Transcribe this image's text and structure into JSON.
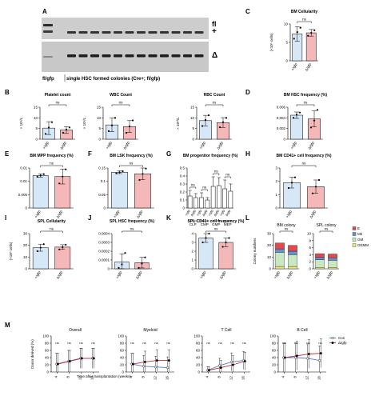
{
  "figure": {
    "gel": {
      "panel_letter": "A",
      "band_label_top": "fl",
      "band_label_plus": "+",
      "band_label_delta": "Δ",
      "lane_label_left": "fl/gfp",
      "lane_label_right": "single HSC formed colonies (Cre+; fl/gfp)"
    },
    "m_x_axis_title": "Time after transplantation (weeks)"
  },
  "chart_data": [
    {
      "id": "C",
      "type": "bar",
      "title": "BM Cellularity",
      "ylabel": "(×10⁶ cells)",
      "categories": [
        "+/gfp",
        "Δ/gfp"
      ],
      "values": [
        7.3,
        7.6
      ],
      "errors": [
        2.0,
        0.9
      ],
      "ylim": [
        0,
        10
      ],
      "yticks": [
        0,
        5,
        10
      ],
      "sig": "ns",
      "points": [
        [
          6.0,
          7.8,
          9.0
        ],
        [
          6.8,
          7.6,
          8.3
        ]
      ]
    },
    {
      "id": "B1",
      "type": "bar",
      "title": "Platelet count",
      "ylabel": "× 10⁹/L",
      "categories": [
        "+/gfp",
        "Δ/gfp"
      ],
      "values": [
        5.2,
        4.3
      ],
      "errors": [
        3.0,
        1.6
      ],
      "ylim": [
        0,
        15
      ],
      "yticks": [
        0,
        5,
        10,
        15
      ],
      "sig": "ns",
      "points": [
        [
          2.5,
          5.5,
          8.0
        ],
        [
          3.0,
          4.5,
          5.5
        ]
      ]
    },
    {
      "id": "B2",
      "type": "bar",
      "title": "WBC Count",
      "ylabel": "× 10⁹/L",
      "categories": [
        "+/gfp",
        "Δ/gfp"
      ],
      "values": [
        6.7,
        5.9
      ],
      "errors": [
        3.2,
        2.8
      ],
      "ylim": [
        0,
        15
      ],
      "yticks": [
        0,
        5,
        10,
        15
      ],
      "sig": "ns",
      "points": [
        [
          3.8,
          6.5,
          10.0
        ],
        [
          3.0,
          6.0,
          8.8
        ]
      ]
    },
    {
      "id": "B3",
      "type": "bar",
      "title": "RBC Count",
      "ylabel": "× 10¹²/L",
      "categories": [
        "+/gfp",
        "Δ/gfp"
      ],
      "values": [
        8.7,
        7.8
      ],
      "errors": [
        2.5,
        2.3
      ],
      "ylim": [
        0,
        15
      ],
      "yticks": [
        0,
        5,
        10,
        15
      ],
      "sig": "ns",
      "points": [
        [
          6.2,
          9.0,
          11.2
        ],
        [
          5.6,
          8.0,
          10.0
        ]
      ]
    },
    {
      "id": "D",
      "type": "bar",
      "title": "BM HSC frequency (%)",
      "categories": [
        "+/gfp",
        "Δ/gfp"
      ],
      "values": [
        0.0045,
        0.0038
      ],
      "errors": [
        0.0006,
        0.0015
      ],
      "ylim": [
        0,
        0.006
      ],
      "yticks": [
        0,
        0.002,
        0.004,
        0.006
      ],
      "sig": "ns",
      "points": [
        [
          0.004,
          0.0046,
          0.005
        ],
        [
          0.0022,
          0.0035,
          0.0055
        ]
      ]
    },
    {
      "id": "E",
      "type": "bar",
      "title": "BM MPP frequency (%)",
      "categories": [
        "+/gfp",
        "Δ/gfp"
      ],
      "values": [
        0.0122,
        0.0118
      ],
      "errors": [
        0.0006,
        0.0028
      ],
      "ylim": [
        0,
        0.015
      ],
      "yticks": [
        0,
        0.005,
        0.01,
        0.015
      ],
      "sig": "ns",
      "points": [
        [
          0.0117,
          0.0122,
          0.0127
        ],
        [
          0.0092,
          0.0118,
          0.0145
        ]
      ]
    },
    {
      "id": "F",
      "type": "bar",
      "title": "BM LSK frequency (%)",
      "categories": [
        "+/gfp",
        "Δ/gfp"
      ],
      "values": [
        0.134,
        0.128
      ],
      "errors": [
        0.005,
        0.022
      ],
      "ylim": [
        0,
        0.15
      ],
      "yticks": [
        0,
        0.05,
        0.1,
        0.15
      ],
      "sig": "ns",
      "points": [
        [
          0.13,
          0.134,
          0.138
        ],
        [
          0.105,
          0.128,
          0.148
        ]
      ]
    },
    {
      "id": "G",
      "type": "bar",
      "title": "BM progenitor frequency (%)",
      "categories": [
        "+/gfp",
        "Δ/gfp",
        "+/gfp",
        "Δ/gfp",
        "+/gfp",
        "Δ/gfp",
        "+/gfp",
        "Δ/gfp"
      ],
      "groups": [
        "CLP",
        "CMP",
        "GMP",
        "MEP"
      ],
      "values": [
        0.15,
        0.13,
        0.13,
        0.1,
        0.27,
        0.28,
        0.24,
        0.21
      ],
      "errors": [
        0.07,
        0.05,
        0.06,
        0.03,
        0.12,
        0.1,
        0.11,
        0.09
      ],
      "ylim": [
        0,
        0.5
      ],
      "yticks": [
        0,
        0.1,
        0.2,
        0.3,
        0.4,
        0.5
      ],
      "sig": [
        "ns",
        "ns",
        "ns",
        "ns"
      ]
    },
    {
      "id": "H",
      "type": "bar",
      "title": "BM CD41+ cell frequency (%)",
      "categories": [
        "+/gfp",
        "Δ/gfp"
      ],
      "values": [
        1.9,
        1.6
      ],
      "errors": [
        0.4,
        0.5
      ],
      "ylim": [
        0,
        3
      ],
      "yticks": [
        0,
        1,
        2,
        3
      ],
      "sig": "ns",
      "points": [
        [
          1.5,
          1.9,
          2.3
        ],
        [
          1.1,
          1.6,
          2.1
        ]
      ]
    },
    {
      "id": "I",
      "type": "bar",
      "title": "SPL Cellularity",
      "ylabel": "(×10⁶ cells)",
      "categories": [
        "+/gfp",
        "Δ/gfp"
      ],
      "values": [
        18,
        18.5
      ],
      "errors": [
        3.0,
        2.0
      ],
      "ylim": [
        0,
        30
      ],
      "yticks": [
        0,
        10,
        20,
        30
      ],
      "sig": "ns",
      "points": [
        [
          15,
          18,
          21
        ],
        [
          16.5,
          18.5,
          20.5
        ]
      ]
    },
    {
      "id": "J",
      "type": "bar",
      "title": "SPL HSC frequency (%)",
      "categories": [
        "+/gfp",
        "Δ/gfp"
      ],
      "values": [
        8e-05,
        7e-05
      ],
      "errors": [
        9e-05,
        6e-05
      ],
      "ylim": [
        0,
        0.0004
      ],
      "yticks": [
        0,
        0.0001,
        0.0002,
        0.0003,
        0.0004
      ],
      "sig": "ns",
      "points": [
        [
          1e-05,
          5e-05,
          0.00018
        ],
        [
          1e-05,
          6e-05,
          0.00013
        ]
      ]
    },
    {
      "id": "K",
      "type": "bar",
      "title": "SPL CD41+ cell frequency (%)",
      "categories": [
        "+/gfp",
        "Δ/gfp"
      ],
      "values": [
        3.5,
        3.0
      ],
      "errors": [
        0.5,
        0.5
      ],
      "ylim": [
        0,
        4
      ],
      "yticks": [
        0,
        1,
        2,
        3,
        4
      ],
      "sig": "ns",
      "points": [
        [
          3.0,
          3.5,
          4.0
        ],
        [
          2.5,
          3.0,
          3.5
        ]
      ]
    },
    {
      "id": "L",
      "type": "bar",
      "stacked": true,
      "ylabel": "Colony numbers",
      "legend": [
        "E",
        "Mk",
        "GM",
        "GEMM"
      ],
      "panels": [
        {
          "title": "BM colony",
          "ylim": [
            0,
            30
          ],
          "yticks": [
            0,
            10,
            20,
            30
          ],
          "categories": [
            "+/gfp",
            "Δ/gfp"
          ],
          "series": [
            {
              "name": "GEMM",
              "values": [
                2,
                2
              ]
            },
            {
              "name": "GM",
              "values": [
                12,
                10
              ]
            },
            {
              "name": "Mk",
              "values": [
                3,
                3
              ]
            },
            {
              "name": "E",
              "values": [
                5,
                5
              ]
            }
          ],
          "sig": "ns"
        },
        {
          "title": "SPL colony",
          "ylim": [
            0,
            10
          ],
          "yticks": [
            0,
            2,
            4,
            6,
            8,
            10
          ],
          "categories": [
            "+/gfp",
            "Δ/gfp"
          ],
          "series": [
            {
              "name": "GEMM",
              "values": [
                0.4,
                0.4
              ]
            },
            {
              "name": "GM",
              "values": [
                2.2,
                2.0
              ]
            },
            {
              "name": "Mk",
              "values": [
                0.7,
                0.7
              ]
            },
            {
              "name": "E",
              "values": [
                1.0,
                1.1
              ]
            }
          ],
          "sig": "ns"
        }
      ]
    },
    {
      "id": "M",
      "type": "line",
      "ylabel": "Donor derived (%)",
      "x": [
        4,
        8,
        12,
        16
      ],
      "xlabel": "Time after transplantation (weeks)",
      "ylim": [
        0,
        100
      ],
      "yticks": [
        0,
        20,
        40,
        60,
        80,
        100
      ],
      "legend": [
        "Con",
        "Δ/gfp"
      ],
      "panels": [
        {
          "title": "Overall",
          "series": [
            {
              "name": "Con",
              "values": [
                22,
                30,
                38,
                38
              ],
              "errors": [
                30,
                30,
                28,
                28
              ]
            },
            {
              "name": "Δ/gfp",
              "values": [
                22,
                30,
                38,
                38
              ],
              "errors": [
                30,
                30,
                28,
                28
              ]
            }
          ],
          "sig": [
            "ns",
            "ns",
            "ns",
            "ns"
          ]
        },
        {
          "title": "Myeloid",
          "series": [
            {
              "name": "Con",
              "values": [
                22,
                16,
                14,
                12
              ],
              "errors": [
                30,
                30,
                30,
                30
              ]
            },
            {
              "name": "Δ/gfp",
              "values": [
                22,
                28,
                32,
                32
              ],
              "errors": [
                30,
                30,
                30,
                30
              ]
            }
          ],
          "sig": [
            "ns",
            "ns",
            "ns",
            "ns"
          ]
        },
        {
          "title": "T Cell",
          "series": [
            {
              "name": "Con",
              "values": [
                5,
                18,
                28,
                32
              ],
              "errors": [
                10,
                20,
                25,
                25
              ]
            },
            {
              "name": "Δ/gfp",
              "values": [
                5,
                12,
                20,
                30
              ],
              "errors": [
                10,
                20,
                25,
                25
              ]
            }
          ],
          "sig": [
            "ns",
            "ns",
            "ns",
            "ns"
          ]
        },
        {
          "title": "B Cell",
          "series": [
            {
              "name": "Con",
              "values": [
                40,
                40,
                38,
                32
              ],
              "errors": [
                40,
                40,
                40,
                40
              ]
            },
            {
              "name": "Δ/gfp",
              "values": [
                40,
                45,
                50,
                52
              ],
              "errors": [
                40,
                40,
                40,
                40
              ]
            }
          ],
          "sig": [
            "ns",
            "ns",
            "ns",
            "ns"
          ]
        }
      ]
    }
  ]
}
